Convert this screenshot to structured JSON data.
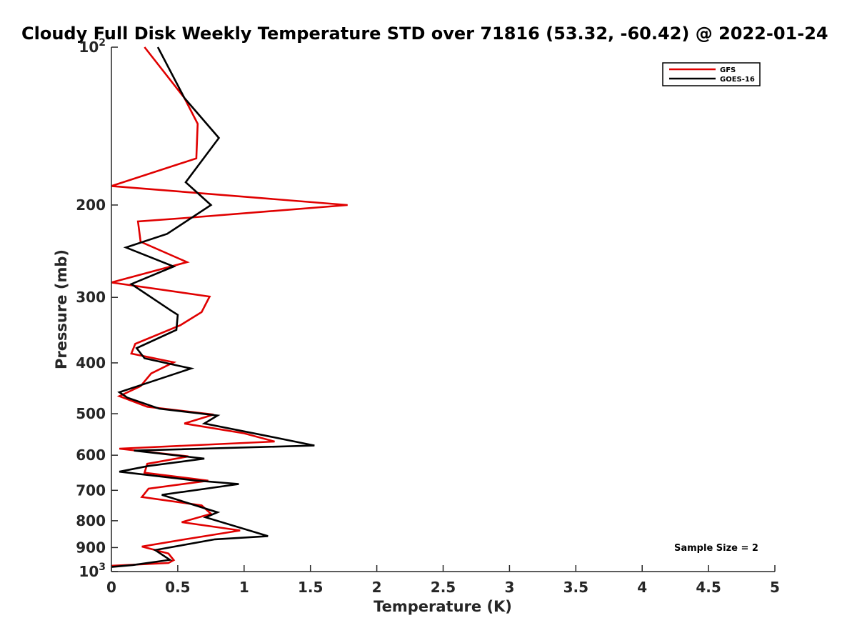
{
  "chart_data": {
    "type": "line",
    "title": "Cloudy Full Disk Weekly Temperature STD over 71816 (53.32, -60.42) @ 2022-01-24",
    "xlabel": "Temperature (K)",
    "ylabel": "Pressure (mb)",
    "xlim": [
      0,
      5
    ],
    "ylim": [
      100,
      1000
    ],
    "y_scale": "log",
    "y_reversed": true,
    "x_ticks": [
      "0",
      "0.5",
      "1",
      "1.5",
      "2",
      "2.5",
      "3",
      "3.5",
      "4",
      "4.5",
      "5"
    ],
    "y_ticks": [
      {
        "value": 100,
        "base": "10",
        "exp": "2"
      },
      {
        "value": 200,
        "label": "200"
      },
      {
        "value": 300,
        "label": "300"
      },
      {
        "value": 400,
        "label": "400"
      },
      {
        "value": 500,
        "label": "500"
      },
      {
        "value": 600,
        "label": "600"
      },
      {
        "value": 700,
        "label": "700"
      },
      {
        "value": 800,
        "label": "800"
      },
      {
        "value": 900,
        "label": "900"
      },
      {
        "value": 1000,
        "base": "10",
        "exp": "3"
      }
    ],
    "grid": false,
    "legend_position": "top-right",
    "annotation": "Sample Size = 2",
    "series": [
      {
        "name": "GFS",
        "color": "#e00000",
        "points": [
          [
            0.25,
            100
          ],
          [
            0.55,
            125
          ],
          [
            0.65,
            140
          ],
          [
            0.64,
            163
          ],
          [
            0.0,
            184
          ],
          [
            1.78,
            200
          ],
          [
            0.53,
            212
          ],
          [
            0.2,
            215
          ],
          [
            0.22,
            235
          ],
          [
            0.57,
            257
          ],
          [
            0.0,
            281
          ],
          [
            0.74,
            299
          ],
          [
            0.68,
            320
          ],
          [
            0.52,
            339
          ],
          [
            0.18,
            368
          ],
          [
            0.15,
            384
          ],
          [
            0.47,
            399
          ],
          [
            0.3,
            419
          ],
          [
            0.22,
            443
          ],
          [
            0.06,
            463
          ],
          [
            0.27,
            485
          ],
          [
            0.77,
            502
          ],
          [
            0.55,
            522
          ],
          [
            1.0,
            545
          ],
          [
            1.23,
            565
          ],
          [
            0.06,
            583
          ],
          [
            0.58,
            603
          ],
          [
            0.27,
            623
          ],
          [
            0.25,
            648
          ],
          [
            0.73,
            671
          ],
          [
            0.28,
            695
          ],
          [
            0.23,
            721
          ],
          [
            0.68,
            748
          ],
          [
            0.75,
            776
          ],
          [
            0.53,
            805
          ],
          [
            0.97,
            835
          ],
          [
            0.58,
            866
          ],
          [
            0.23,
            896
          ],
          [
            0.43,
            924
          ],
          [
            0.47,
            951
          ],
          [
            0.43,
            963
          ],
          [
            0.0,
            975
          ]
        ]
      },
      {
        "name": "GOES-16",
        "color": "#000000",
        "points": [
          [
            0.35,
            100
          ],
          [
            0.55,
            125
          ],
          [
            0.81,
            149
          ],
          [
            0.56,
            181
          ],
          [
            0.75,
            200
          ],
          [
            0.42,
            227
          ],
          [
            0.11,
            241
          ],
          [
            0.47,
            262
          ],
          [
            0.15,
            283
          ],
          [
            0.45,
            318
          ],
          [
            0.5,
            324
          ],
          [
            0.49,
            346
          ],
          [
            0.19,
            375
          ],
          [
            0.25,
            392
          ],
          [
            0.6,
            410
          ],
          [
            0.06,
            455
          ],
          [
            0.12,
            466
          ],
          [
            0.36,
            489
          ],
          [
            0.8,
            504
          ],
          [
            0.7,
            522
          ],
          [
            1.2,
            553
          ],
          [
            1.53,
            575
          ],
          [
            0.17,
            588
          ],
          [
            0.7,
            609
          ],
          [
            0.28,
            629
          ],
          [
            0.06,
            645
          ],
          [
            0.62,
            670
          ],
          [
            0.96,
            681
          ],
          [
            0.38,
            714
          ],
          [
            0.8,
            771
          ],
          [
            0.71,
            788
          ],
          [
            1.18,
            856
          ],
          [
            0.78,
            868
          ],
          [
            0.33,
            910
          ],
          [
            0.44,
            950
          ],
          [
            0.16,
            972
          ],
          [
            0.0,
            980
          ]
        ]
      }
    ]
  }
}
